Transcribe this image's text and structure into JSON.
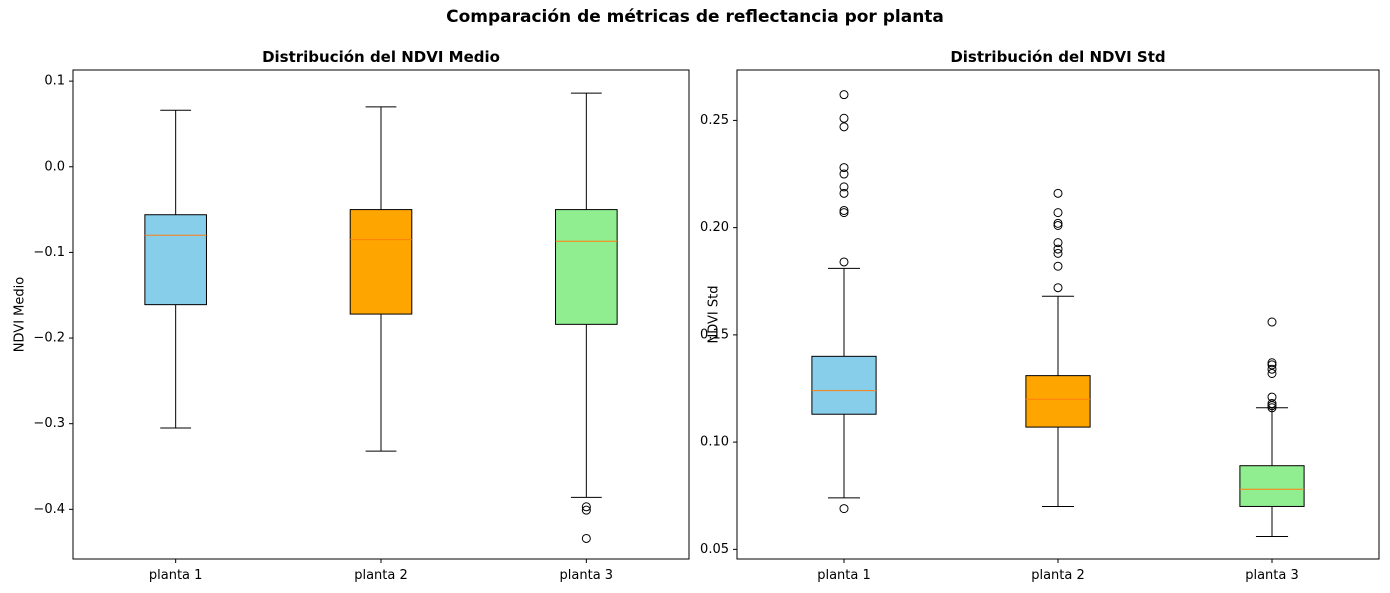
{
  "suptitle": "Comparación de métricas de reflectancia por planta",
  "chart_data": [
    {
      "type": "boxplot",
      "title": "Distribución del NDVI Medio",
      "xlabel": "",
      "ylabel": "NDVI Medio",
      "ylim": [
        -0.458,
        0.113
      ],
      "yticks": [
        -0.4,
        -0.3,
        -0.2,
        -0.1,
        0.0,
        0.1
      ],
      "ytick_labels": [
        "−0.4",
        "−0.3",
        "−0.2",
        "−0.1",
        "0.0",
        "0.1"
      ],
      "categories": [
        "planta 1",
        "planta 2",
        "planta 3"
      ],
      "boxes": [
        {
          "name": "planta 1",
          "color": "#87CEEB",
          "whisker_low": -0.305,
          "q1": -0.161,
          "median": -0.08,
          "q3": -0.056,
          "whisker_high": 0.066,
          "outliers": []
        },
        {
          "name": "planta 2",
          "color": "#FFA500",
          "whisker_low": -0.332,
          "q1": -0.172,
          "median": -0.085,
          "q3": -0.05,
          "whisker_high": 0.07,
          "outliers": []
        },
        {
          "name": "planta 3",
          "color": "#90EE90",
          "whisker_low": -0.386,
          "q1": -0.184,
          "median": -0.087,
          "q3": -0.05,
          "whisker_high": 0.086,
          "outliers": [
            -0.397,
            -0.401,
            -0.434
          ]
        }
      ],
      "median_color": "#FF7F0E",
      "grid": false
    },
    {
      "type": "boxplot",
      "title": "Distribución del NDVI Std",
      "xlabel": "",
      "ylabel": "NDVI Std",
      "ylim": [
        0.0455,
        0.2735
      ],
      "yticks": [
        0.05,
        0.1,
        0.15,
        0.2,
        0.25
      ],
      "ytick_labels": [
        "0.05",
        "0.10",
        "0.15",
        "0.20",
        "0.25"
      ],
      "categories": [
        "planta 1",
        "planta 2",
        "planta 3"
      ],
      "boxes": [
        {
          "name": "planta 1",
          "color": "#87CEEB",
          "whisker_low": 0.074,
          "q1": 0.113,
          "median": 0.124,
          "q3": 0.14,
          "whisker_high": 0.181,
          "outliers": [
            0.069,
            0.184,
            0.207,
            0.208,
            0.216,
            0.219,
            0.225,
            0.228,
            0.247,
            0.251,
            0.262
          ]
        },
        {
          "name": "planta 2",
          "color": "#FFA500",
          "whisker_low": 0.07,
          "q1": 0.107,
          "median": 0.12,
          "q3": 0.131,
          "whisker_high": 0.168,
          "outliers": [
            0.172,
            0.182,
            0.188,
            0.19,
            0.193,
            0.201,
            0.202,
            0.207,
            0.216
          ]
        },
        {
          "name": "planta 3",
          "color": "#90EE90",
          "whisker_low": 0.056,
          "q1": 0.07,
          "median": 0.078,
          "q3": 0.089,
          "whisker_high": 0.116,
          "outliers": [
            0.116,
            0.117,
            0.118,
            0.121,
            0.132,
            0.134,
            0.136,
            0.137,
            0.156
          ]
        }
      ],
      "median_color": "#FF7F0E",
      "grid": false
    }
  ]
}
